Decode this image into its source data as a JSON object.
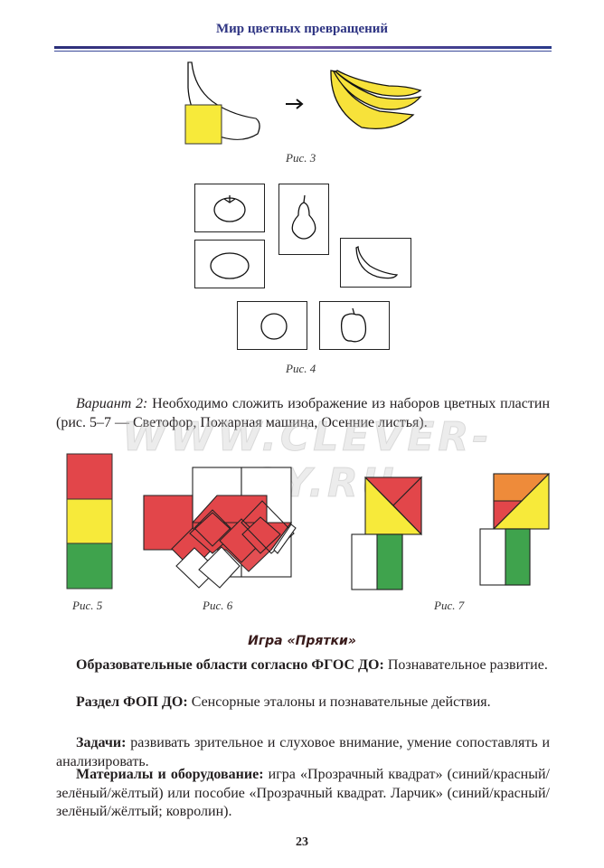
{
  "header": {
    "title": "Мир цветных превращений",
    "accent_color": "#2f3583"
  },
  "figures": {
    "fig3": {
      "caption": "Рис. 3"
    },
    "fig4": {
      "caption": "Рис. 4",
      "cards": [
        "tomato",
        "pear",
        "lemon",
        "banana",
        "circle",
        "pepper"
      ]
    },
    "fig5": {
      "caption": "Рис. 5"
    },
    "fig6": {
      "caption": "Рис. 6"
    },
    "fig7": {
      "caption": "Рис. 7"
    }
  },
  "variant2": {
    "label": "Вариант 2:",
    "text": " Необходимо сложить изображение из наборов цветных пластин (рис. 5–7 — Светофор, Пожарная машина, Осенние листья)."
  },
  "watermark": "WWW.CLEVER-TOY.RU",
  "game": {
    "title": "Игра «Прятки»",
    "areas_label": "Образовательные области согласно ФГОС ДО:",
    "areas_text": " Познавательное развитие.",
    "section_label": "Раздел ФОП ДО:",
    "section_text": " Сенсорные эталоны и познавательные действия.",
    "tasks_label": "Задачи:",
    "tasks_text": " развивать зрительное и слуховое внимание, умение сопоставлять и анализировать.",
    "materials_label": "Материалы и оборудование:",
    "materials_text": " игра «Прозрачный квадрат» (синий/красный/зелёный/жёлтый) или пособие «Прозрачный квадрат. Ларчик» (синий/красный/зелёный/жёлтый; ковролин)."
  },
  "colors": {
    "red": "#e2464a",
    "yellow": "#f7ea3a",
    "green": "#3fa34d",
    "orange": "#ee8b3a"
  },
  "page_number": "23"
}
